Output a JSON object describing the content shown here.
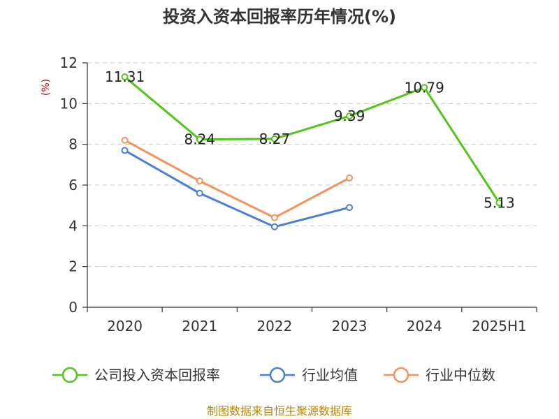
{
  "chart_data": {
    "type": "line",
    "title": "投资入资本回报率历年情况(%)",
    "unit_label": "(%)",
    "categories": [
      "2020",
      "2021",
      "2022",
      "2023",
      "2024",
      "2025H1"
    ],
    "ylim": [
      0,
      12
    ],
    "yticks": [
      0,
      2,
      4,
      6,
      8,
      10,
      12
    ],
    "grid": true,
    "legend_position": "bottom",
    "series": [
      {
        "name": "公司投入资本回报率",
        "color": "#52c41a",
        "values": [
          11.31,
          8.24,
          8.27,
          9.39,
          10.79,
          5.13
        ],
        "labels": [
          "11.31",
          "8.24",
          "8.27",
          "9.39",
          "10.79",
          "5.13"
        ]
      },
      {
        "name": "行业均值",
        "color": "#4a7fd6",
        "values": [
          7.7,
          5.6,
          3.95,
          4.9,
          null,
          null
        ]
      },
      {
        "name": "行业中位数",
        "color": "#f5915a",
        "values": [
          8.2,
          6.2,
          4.4,
          6.35,
          null,
          null
        ]
      }
    ]
  },
  "source_text": "制图数据来自恒生聚源数据库"
}
